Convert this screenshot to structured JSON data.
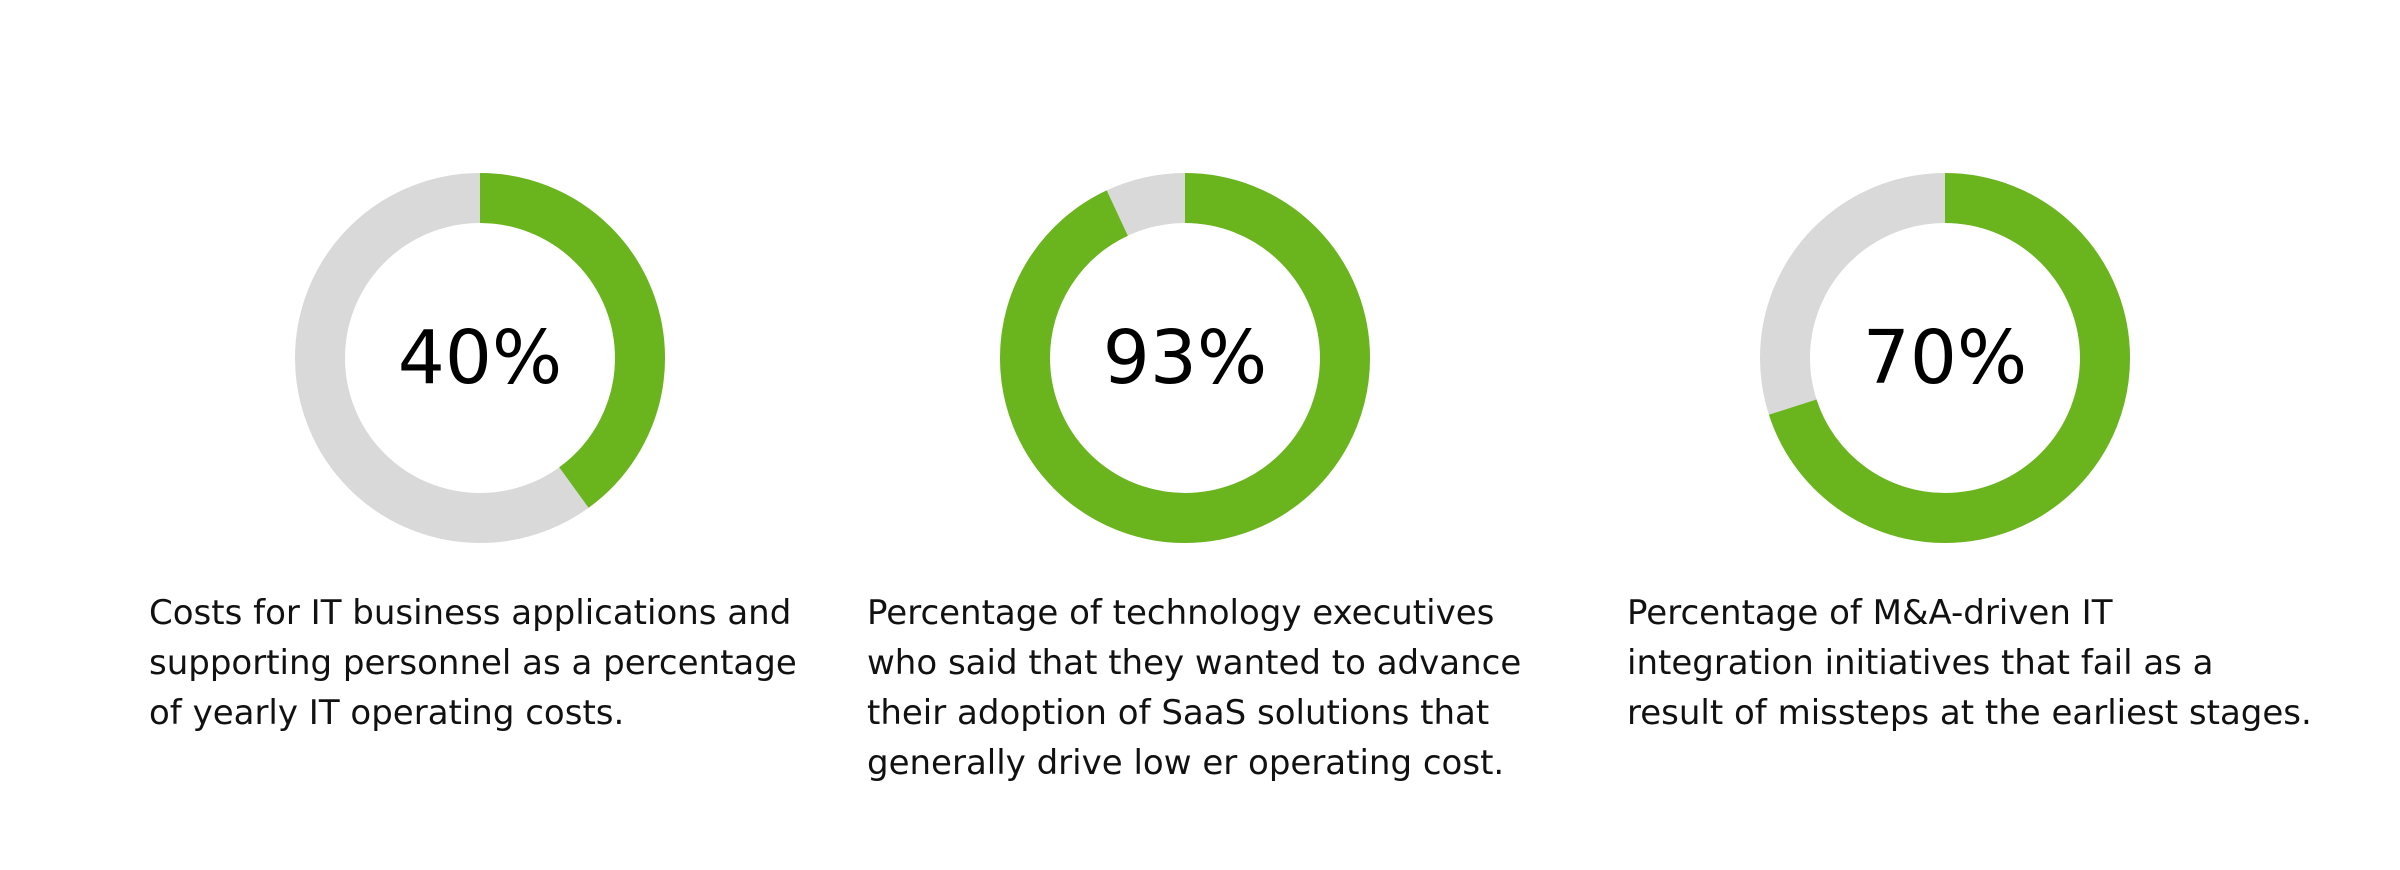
{
  "colors": {
    "accent": "#6ab41d",
    "track": "#d9d9d9",
    "text": "#111111"
  },
  "chart_data": [
    {
      "type": "pie",
      "value": 40,
      "label": "40%",
      "caption_lines": [
        "Costs for IT business applications and",
        "supporting personnel as a percentage",
        "of yearly IT operating costs."
      ]
    },
    {
      "type": "pie",
      "value": 93,
      "label": "93%",
      "caption_lines": [
        "Percentage of technology executives",
        "who said that they wanted to advance",
        "their adoption of SaaS solutions that",
        "generally drive low er operating cost."
      ]
    },
    {
      "type": "pie",
      "value": 70,
      "label": "70%",
      "caption_lines": [
        "Percentage of M&A-driven IT",
        "integration initiatives that fail as a",
        "result of missteps at the earliest stages."
      ]
    }
  ]
}
